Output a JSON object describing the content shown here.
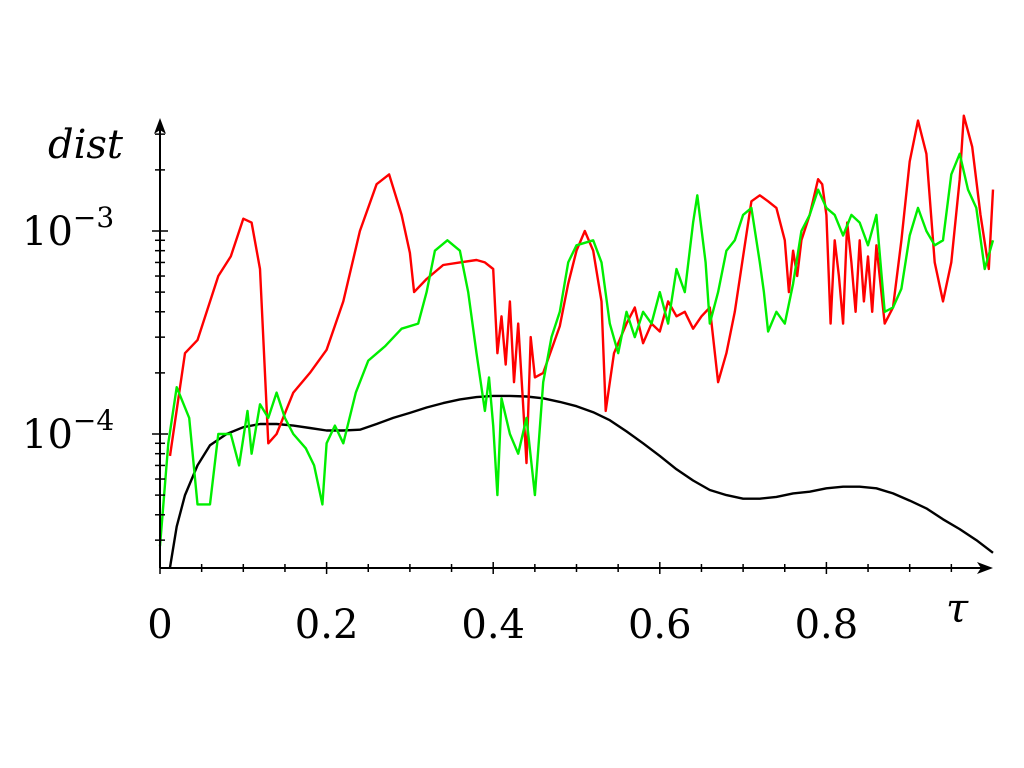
{
  "chart_data": {
    "type": "line",
    "xlabel": "τ",
    "ylabel": "dist",
    "y_scale": "log",
    "xlim": [
      0,
      1.0
    ],
    "ylim": [
      2.2e-05,
      0.0032
    ],
    "grid": false,
    "x_ticks": [
      {
        "value": 0,
        "label": "0"
      },
      {
        "value": 0.2,
        "label": "0.2"
      },
      {
        "value": 0.4,
        "label": "0.4"
      },
      {
        "value": 0.6,
        "label": "0.6"
      },
      {
        "value": 0.8,
        "label": "0.8"
      }
    ],
    "y_ticks": [
      {
        "value": 0.001,
        "base": "10",
        "exp": "−3"
      },
      {
        "value": 0.0001,
        "base": "10",
        "exp": "−4"
      }
    ],
    "series": [
      {
        "color": "#000000",
        "points": [
          [
            0.012,
            2.2e-05
          ],
          [
            0.02,
            3.5e-05
          ],
          [
            0.03,
            5e-05
          ],
          [
            0.045,
            7e-05
          ],
          [
            0.06,
            8.8e-05
          ],
          [
            0.08,
            0.0001
          ],
          [
            0.1,
            0.000108
          ],
          [
            0.12,
            0.000112
          ],
          [
            0.14,
            0.000112
          ],
          [
            0.16,
            0.00011
          ],
          [
            0.18,
            0.000107
          ],
          [
            0.2,
            0.000104
          ],
          [
            0.22,
            0.000104
          ],
          [
            0.24,
            0.000105
          ],
          [
            0.26,
            0.000112
          ],
          [
            0.28,
            0.00012
          ],
          [
            0.3,
            0.000127
          ],
          [
            0.32,
            0.000135
          ],
          [
            0.34,
            0.000142
          ],
          [
            0.36,
            0.000148
          ],
          [
            0.38,
            0.000152
          ],
          [
            0.4,
            0.000154
          ],
          [
            0.42,
            0.000154
          ],
          [
            0.44,
            0.000153
          ],
          [
            0.46,
            0.00015
          ],
          [
            0.48,
            0.000144
          ],
          [
            0.5,
            0.000137
          ],
          [
            0.52,
            0.000128
          ],
          [
            0.54,
            0.000117
          ],
          [
            0.56,
            0.000103
          ],
          [
            0.58,
            9e-05
          ],
          [
            0.6,
            7.8e-05
          ],
          [
            0.62,
            6.7e-05
          ],
          [
            0.64,
            5.9e-05
          ],
          [
            0.66,
            5.3e-05
          ],
          [
            0.68,
            5e-05
          ],
          [
            0.7,
            4.8e-05
          ],
          [
            0.72,
            4.8e-05
          ],
          [
            0.74,
            4.9e-05
          ],
          [
            0.76,
            5.1e-05
          ],
          [
            0.78,
            5.2e-05
          ],
          [
            0.8,
            5.4e-05
          ],
          [
            0.82,
            5.5e-05
          ],
          [
            0.84,
            5.5e-05
          ],
          [
            0.86,
            5.4e-05
          ],
          [
            0.88,
            5.1e-05
          ],
          [
            0.9,
            4.7e-05
          ],
          [
            0.92,
            4.3e-05
          ],
          [
            0.94,
            3.8e-05
          ],
          [
            0.96,
            3.4e-05
          ],
          [
            0.98,
            3e-05
          ],
          [
            1.0,
            2.6e-05
          ]
        ]
      },
      {
        "color": "#ff0000",
        "points": [
          [
            0.012,
            7.8e-05
          ],
          [
            0.03,
            0.00025
          ],
          [
            0.045,
            0.00029
          ],
          [
            0.07,
            0.0006
          ],
          [
            0.085,
            0.00075
          ],
          [
            0.1,
            0.00115
          ],
          [
            0.11,
            0.0011
          ],
          [
            0.12,
            0.00065
          ],
          [
            0.13,
            9e-05
          ],
          [
            0.14,
            0.0001
          ],
          [
            0.16,
            0.00016
          ],
          [
            0.18,
            0.0002
          ],
          [
            0.2,
            0.00026
          ],
          [
            0.22,
            0.00045
          ],
          [
            0.24,
            0.001
          ],
          [
            0.26,
            0.0017
          ],
          [
            0.275,
            0.0019
          ],
          [
            0.29,
            0.0012
          ],
          [
            0.3,
            0.00078
          ],
          [
            0.305,
            0.0005
          ],
          [
            0.32,
            0.00058
          ],
          [
            0.34,
            0.00068
          ],
          [
            0.36,
            0.0007
          ],
          [
            0.38,
            0.00072
          ],
          [
            0.39,
            0.0007
          ],
          [
            0.4,
            0.00065
          ],
          [
            0.405,
            0.00025
          ],
          [
            0.41,
            0.00038
          ],
          [
            0.415,
            0.00022
          ],
          [
            0.42,
            0.00045
          ],
          [
            0.425,
            0.00018
          ],
          [
            0.43,
            0.00035
          ],
          [
            0.435,
            0.00016
          ],
          [
            0.44,
            7.2e-05
          ],
          [
            0.445,
            0.0003
          ],
          [
            0.45,
            0.00019
          ],
          [
            0.46,
            0.0002
          ],
          [
            0.48,
            0.00034
          ],
          [
            0.49,
            0.00055
          ],
          [
            0.5,
            0.0008
          ],
          [
            0.51,
            0.001
          ],
          [
            0.52,
            0.0008
          ],
          [
            0.53,
            0.00045
          ],
          [
            0.535,
            0.00013
          ],
          [
            0.545,
            0.00025
          ],
          [
            0.56,
            0.00035
          ],
          [
            0.57,
            0.00042
          ],
          [
            0.58,
            0.00028
          ],
          [
            0.59,
            0.00035
          ],
          [
            0.6,
            0.00032
          ],
          [
            0.61,
            0.00045
          ],
          [
            0.62,
            0.00038
          ],
          [
            0.63,
            0.0004
          ],
          [
            0.64,
            0.00033
          ],
          [
            0.65,
            0.00038
          ],
          [
            0.66,
            0.00042
          ],
          [
            0.67,
            0.00018
          ],
          [
            0.68,
            0.00025
          ],
          [
            0.69,
            0.0004
          ],
          [
            0.7,
            0.00075
          ],
          [
            0.71,
            0.0014
          ],
          [
            0.72,
            0.0015
          ],
          [
            0.73,
            0.0014
          ],
          [
            0.74,
            0.0013
          ],
          [
            0.75,
            0.0009
          ],
          [
            0.755,
            0.0005
          ],
          [
            0.76,
            0.0008
          ],
          [
            0.765,
            0.0006
          ],
          [
            0.77,
            0.0009
          ],
          [
            0.78,
            0.0012
          ],
          [
            0.79,
            0.0018
          ],
          [
            0.795,
            0.0017
          ],
          [
            0.8,
            0.0012
          ],
          [
            0.805,
            0.00035
          ],
          [
            0.81,
            0.0009
          ],
          [
            0.815,
            0.0006
          ],
          [
            0.82,
            0.00035
          ],
          [
            0.825,
            0.0011
          ],
          [
            0.83,
            0.0007
          ],
          [
            0.835,
            0.0004
          ],
          [
            0.84,
            0.0009
          ],
          [
            0.845,
            0.00045
          ],
          [
            0.85,
            0.00075
          ],
          [
            0.855,
            0.0004
          ],
          [
            0.86,
            0.00085
          ],
          [
            0.87,
            0.00035
          ],
          [
            0.88,
            0.00042
          ],
          [
            0.89,
            0.0009
          ],
          [
            0.9,
            0.0022
          ],
          [
            0.91,
            0.0035
          ],
          [
            0.92,
            0.0024
          ],
          [
            0.93,
            0.0007
          ],
          [
            0.94,
            0.00045
          ],
          [
            0.95,
            0.0007
          ],
          [
            0.96,
            0.0018
          ],
          [
            0.965,
            0.0037
          ],
          [
            0.975,
            0.0026
          ],
          [
            0.985,
            0.0012
          ],
          [
            0.995,
            0.00065
          ],
          [
            1.0,
            0.0016
          ]
        ]
      },
      {
        "color": "#00ee00",
        "points": [
          [
            0.0,
            2.8e-05
          ],
          [
            0.01,
            9e-05
          ],
          [
            0.02,
            0.00017
          ],
          [
            0.035,
            0.00012
          ],
          [
            0.045,
            4.5e-05
          ],
          [
            0.06,
            4.5e-05
          ],
          [
            0.07,
            0.0001
          ],
          [
            0.085,
            0.0001
          ],
          [
            0.095,
            7e-05
          ],
          [
            0.105,
            0.00013
          ],
          [
            0.11,
            8e-05
          ],
          [
            0.12,
            0.00014
          ],
          [
            0.13,
            0.00012
          ],
          [
            0.14,
            0.00016
          ],
          [
            0.15,
            0.00012
          ],
          [
            0.16,
            0.0001
          ],
          [
            0.175,
            8.5e-05
          ],
          [
            0.185,
            7e-05
          ],
          [
            0.195,
            4.5e-05
          ],
          [
            0.2,
            9e-05
          ],
          [
            0.21,
            0.00011
          ],
          [
            0.22,
            9e-05
          ],
          [
            0.235,
            0.00016
          ],
          [
            0.25,
            0.00023
          ],
          [
            0.27,
            0.00027
          ],
          [
            0.29,
            0.00033
          ],
          [
            0.31,
            0.00035
          ],
          [
            0.32,
            0.0005
          ],
          [
            0.33,
            0.0008
          ],
          [
            0.345,
            0.0009
          ],
          [
            0.36,
            0.0008
          ],
          [
            0.37,
            0.0005
          ],
          [
            0.38,
            0.00025
          ],
          [
            0.39,
            0.00013
          ],
          [
            0.395,
            0.00019
          ],
          [
            0.4,
            0.00011
          ],
          [
            0.405,
            5e-05
          ],
          [
            0.41,
            0.00015
          ],
          [
            0.42,
            0.0001
          ],
          [
            0.43,
            8e-05
          ],
          [
            0.44,
            0.00012
          ],
          [
            0.45,
            5e-05
          ],
          [
            0.46,
            0.00018
          ],
          [
            0.47,
            0.0003
          ],
          [
            0.48,
            0.0004
          ],
          [
            0.49,
            0.0007
          ],
          [
            0.5,
            0.00085
          ],
          [
            0.52,
            0.0009
          ],
          [
            0.53,
            0.0007
          ],
          [
            0.54,
            0.00035
          ],
          [
            0.55,
            0.00025
          ],
          [
            0.56,
            0.0004
          ],
          [
            0.57,
            0.0003
          ],
          [
            0.58,
            0.0004
          ],
          [
            0.59,
            0.00035
          ],
          [
            0.6,
            0.0005
          ],
          [
            0.61,
            0.00035
          ],
          [
            0.62,
            0.00065
          ],
          [
            0.63,
            0.0005
          ],
          [
            0.64,
            0.0011
          ],
          [
            0.645,
            0.0015
          ],
          [
            0.655,
            0.0007
          ],
          [
            0.66,
            0.00035
          ],
          [
            0.67,
            0.0005
          ],
          [
            0.68,
            0.0008
          ],
          [
            0.69,
            0.0009
          ],
          [
            0.7,
            0.0012
          ],
          [
            0.71,
            0.0013
          ],
          [
            0.72,
            0.0007
          ],
          [
            0.725,
            0.0005
          ],
          [
            0.73,
            0.00032
          ],
          [
            0.74,
            0.0004
          ],
          [
            0.75,
            0.00035
          ],
          [
            0.76,
            0.00055
          ],
          [
            0.77,
            0.001
          ],
          [
            0.78,
            0.0012
          ],
          [
            0.79,
            0.0016
          ],
          [
            0.8,
            0.0013
          ],
          [
            0.81,
            0.0012
          ],
          [
            0.82,
            0.00095
          ],
          [
            0.83,
            0.0012
          ],
          [
            0.84,
            0.0011
          ],
          [
            0.85,
            0.00085
          ],
          [
            0.86,
            0.0012
          ],
          [
            0.87,
            0.0004
          ],
          [
            0.88,
            0.00042
          ],
          [
            0.89,
            0.00052
          ],
          [
            0.9,
            0.00095
          ],
          [
            0.91,
            0.0013
          ],
          [
            0.92,
            0.001
          ],
          [
            0.93,
            0.00085
          ],
          [
            0.94,
            0.0009
          ],
          [
            0.95,
            0.0019
          ],
          [
            0.96,
            0.0024
          ],
          [
            0.97,
            0.0016
          ],
          [
            0.98,
            0.0013
          ],
          [
            0.99,
            0.00065
          ],
          [
            1.0,
            0.0009
          ]
        ]
      }
    ]
  }
}
